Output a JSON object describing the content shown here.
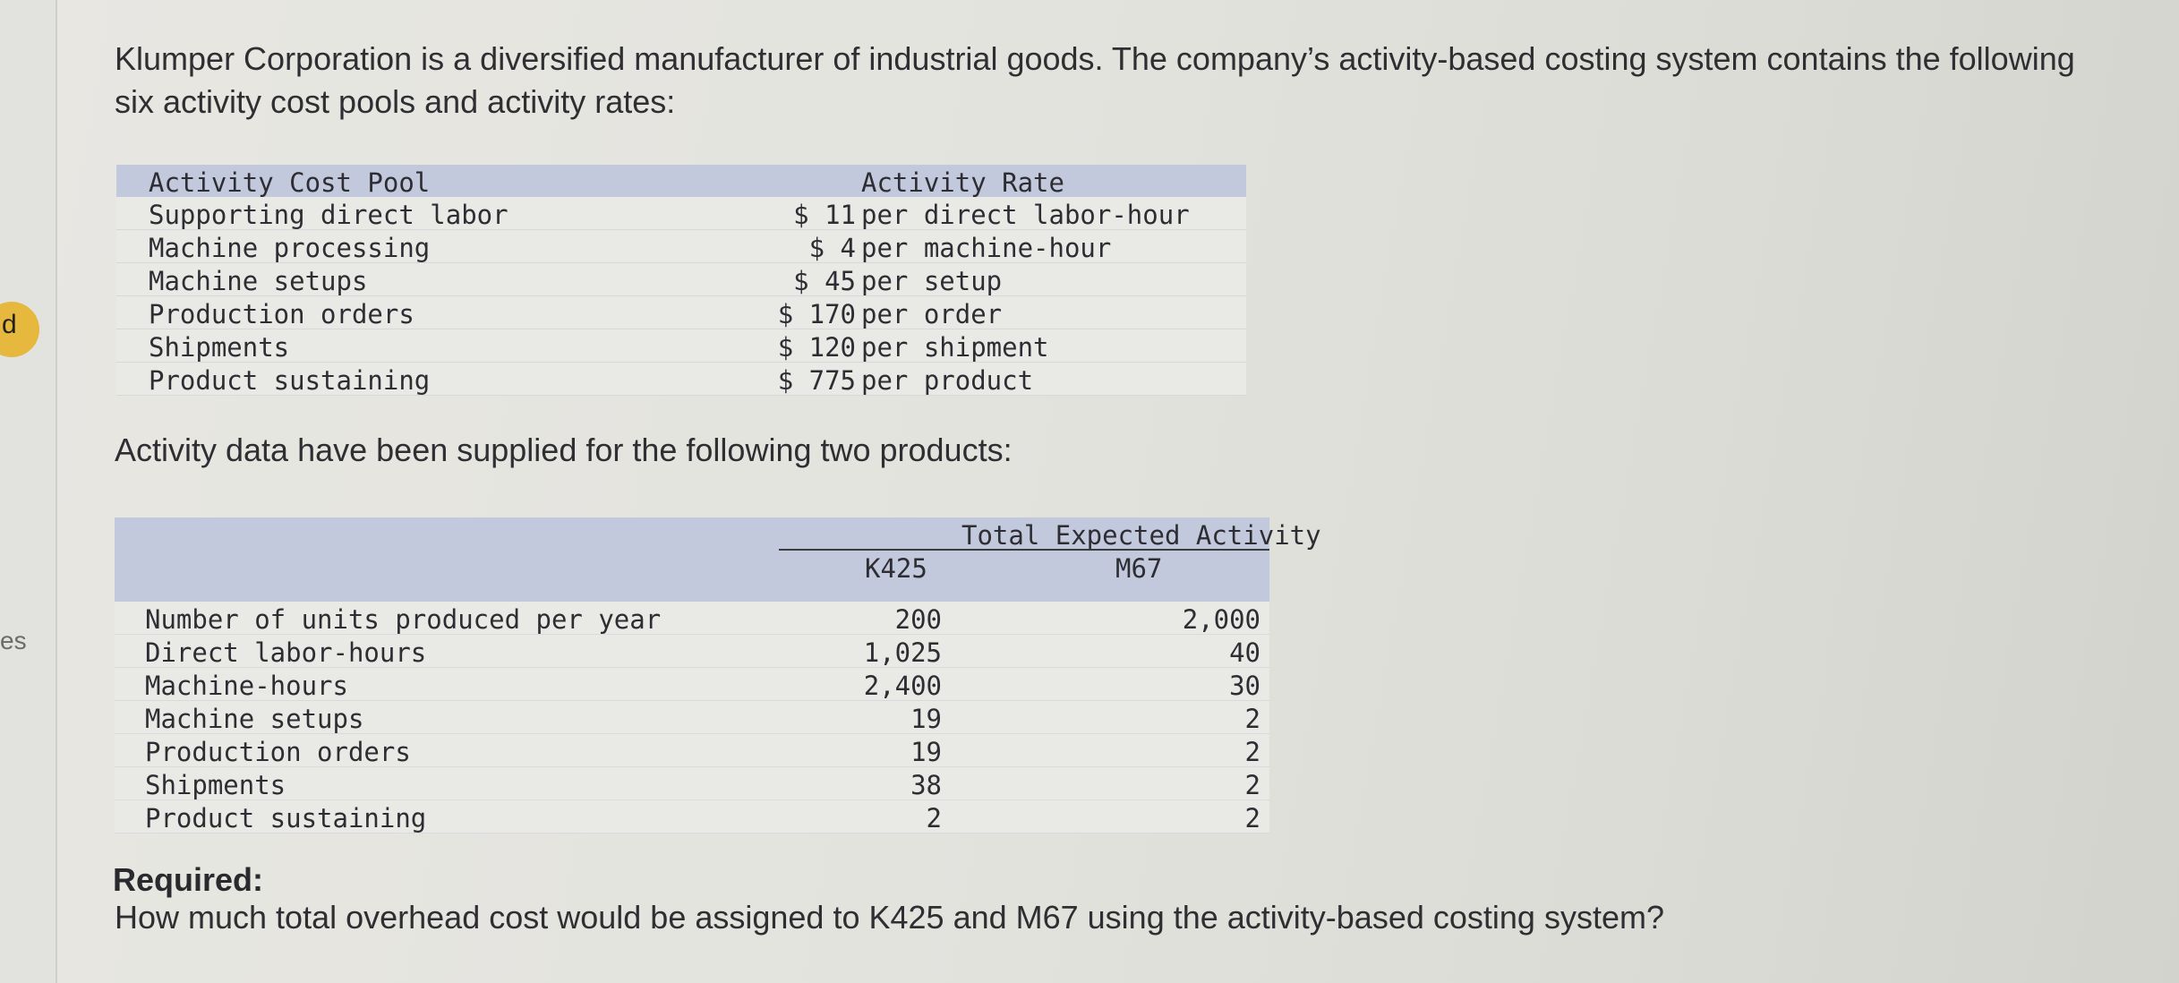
{
  "sidebar": {
    "badge_text": "d",
    "fragment_text": "es",
    "badge_color": "#e7b83e"
  },
  "intro_text": "Klumper Corporation is a diversified manufacturer of industrial goods. The company’s activity-based costing system contains the following six activity cost pools and activity rates:",
  "rates_table": {
    "header_pool": "Activity Cost Pool",
    "header_rate": "Activity Rate",
    "header_color": "#c3c9dd",
    "rows": [
      {
        "pool": "Supporting direct labor",
        "rate": "$ 11",
        "unit": "per direct labor-hour"
      },
      {
        "pool": "Machine processing",
        "rate": "$ 4",
        "unit": "per machine-hour"
      },
      {
        "pool": "Machine setups",
        "rate": "$ 45",
        "unit": "per setup"
      },
      {
        "pool": "Production orders",
        "rate": "$ 170",
        "unit": "per order"
      },
      {
        "pool": "Shipments",
        "rate": "$ 120",
        "unit": "per shipment"
      },
      {
        "pool": "Product sustaining",
        "rate": "$ 775",
        "unit": "per product"
      }
    ]
  },
  "activity_intro": "Activity data have been supplied for the following two products:",
  "activity_table": {
    "header_group": "Total Expected Activity",
    "col_k": "K425",
    "col_m": "M67",
    "rows": [
      {
        "label": "Number of units produced per year",
        "k": "200",
        "m": "2,000"
      },
      {
        "label": "Direct labor-hours",
        "k": "1,025",
        "m": "40"
      },
      {
        "label": "Machine-hours",
        "k": "2,400",
        "m": "30"
      },
      {
        "label": "Machine setups",
        "k": "19",
        "m": "2"
      },
      {
        "label": "Production orders",
        "k": "19",
        "m": "2"
      },
      {
        "label": "Shipments",
        "k": "38",
        "m": "2"
      },
      {
        "label": "Product sustaining",
        "k": "2",
        "m": "2"
      }
    ]
  },
  "required_label": "Required:",
  "question": "How much total overhead cost would be assigned to K425 and M67 using the activity-based costing system?"
}
